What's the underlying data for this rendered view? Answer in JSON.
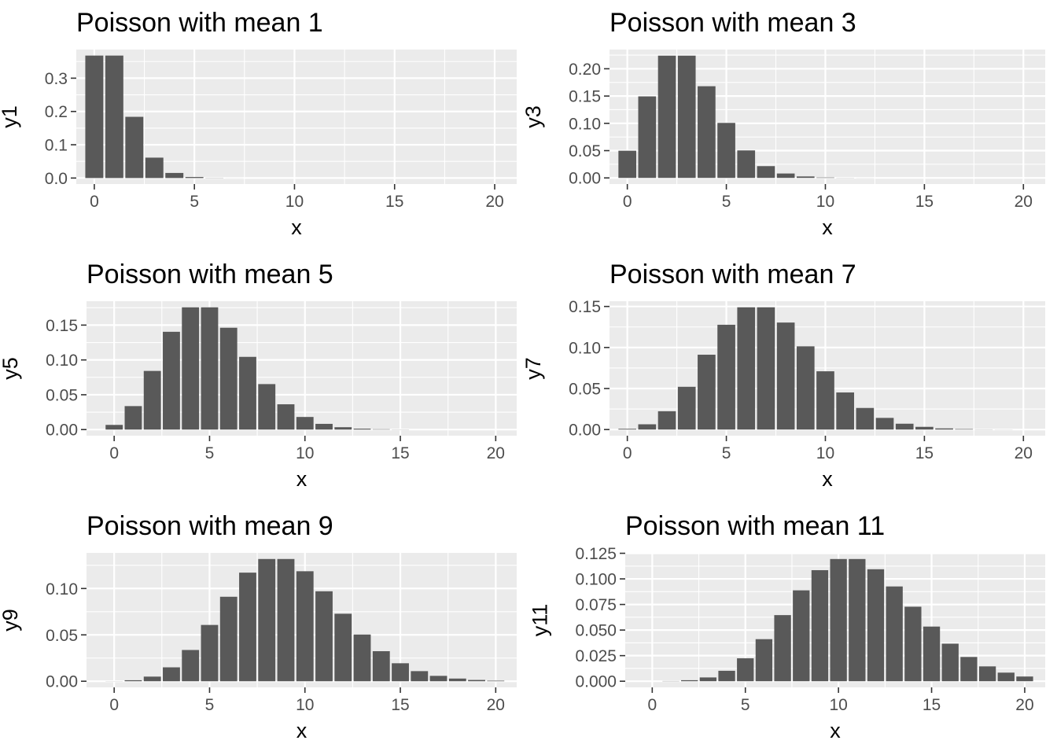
{
  "figure": {
    "background": "#ffffff"
  },
  "style": {
    "panel_bg": "#ebebeb",
    "bar_fill": "#595959",
    "grid": "#ffffff",
    "tick_text": "#4d4d4d"
  },
  "chart_data": [
    {
      "type": "bar",
      "title": "Poisson with mean 1",
      "xlabel": "x",
      "ylabel": "y1",
      "x": [
        0,
        1,
        2,
        3,
        4,
        5,
        6,
        7,
        8,
        9,
        10,
        11,
        12,
        13,
        14,
        15,
        16,
        17,
        18,
        19,
        20
      ],
      "values": [
        0.3679,
        0.3679,
        0.1839,
        0.0613,
        0.0153,
        0.0031,
        0.0005,
        0.0001,
        0,
        0,
        0,
        0,
        0,
        0,
        0,
        0,
        0,
        0,
        0,
        0,
        0
      ],
      "xlim": [
        -0.9,
        21.1
      ],
      "ylim": [
        -0.018,
        0.386
      ],
      "x_ticks": [
        0,
        5,
        10,
        15,
        20
      ],
      "x_tick_labels": [
        "0",
        "5",
        "10",
        "15",
        "20"
      ],
      "y_ticks": [
        0,
        0.1,
        0.2,
        0.3
      ],
      "y_tick_labels": [
        "0.0",
        "0.1",
        "0.2",
        "0.3"
      ],
      "grid": true
    },
    {
      "type": "bar",
      "title": "Poisson with mean 3",
      "xlabel": "x",
      "ylabel": "y3",
      "x": [
        0,
        1,
        2,
        3,
        4,
        5,
        6,
        7,
        8,
        9,
        10,
        11,
        12,
        13,
        14,
        15,
        16,
        17,
        18,
        19,
        20
      ],
      "values": [
        0.0498,
        0.1494,
        0.224,
        0.224,
        0.168,
        0.1008,
        0.0504,
        0.0216,
        0.0081,
        0.0027,
        0.0008,
        0.0002,
        0.0001,
        0,
        0,
        0,
        0,
        0,
        0,
        0,
        0
      ],
      "xlim": [
        -0.9,
        21.1
      ],
      "ylim": [
        -0.0112,
        0.2352
      ],
      "x_ticks": [
        0,
        5,
        10,
        15,
        20
      ],
      "x_tick_labels": [
        "0",
        "5",
        "10",
        "15",
        "20"
      ],
      "y_ticks": [
        0,
        0.05,
        0.1,
        0.15,
        0.2
      ],
      "y_tick_labels": [
        "0.00",
        "0.05",
        "0.10",
        "0.15",
        "0.20"
      ],
      "grid": true
    },
    {
      "type": "bar",
      "title": "Poisson with mean 5",
      "xlabel": "x",
      "ylabel": "y5",
      "x": [
        0,
        1,
        2,
        3,
        4,
        5,
        6,
        7,
        8,
        9,
        10,
        11,
        12,
        13,
        14,
        15,
        16,
        17,
        18,
        19,
        20
      ],
      "values": [
        0.0067,
        0.0337,
        0.0842,
        0.1404,
        0.1755,
        0.1755,
        0.1462,
        0.1044,
        0.0653,
        0.0363,
        0.0181,
        0.0082,
        0.0034,
        0.0013,
        0.0005,
        0.0002,
        0,
        0,
        0,
        0,
        0
      ],
      "xlim": [
        -1.45,
        21.1
      ],
      "ylim": [
        -0.0088,
        0.1843
      ],
      "x_ticks": [
        0,
        5,
        10,
        15,
        20
      ],
      "x_tick_labels": [
        "0",
        "5",
        "10",
        "15",
        "20"
      ],
      "y_ticks": [
        0,
        0.05,
        0.1,
        0.15
      ],
      "y_tick_labels": [
        "0.00",
        "0.05",
        "0.10",
        "0.15"
      ],
      "grid": true
    },
    {
      "type": "bar",
      "title": "Poisson with mean 7",
      "xlabel": "x",
      "ylabel": "y7",
      "x": [
        0,
        1,
        2,
        3,
        4,
        5,
        6,
        7,
        8,
        9,
        10,
        11,
        12,
        13,
        14,
        15,
        16,
        17,
        18,
        19,
        20
      ],
      "values": [
        0.0009,
        0.0064,
        0.0223,
        0.0521,
        0.0912,
        0.1277,
        0.149,
        0.149,
        0.1304,
        0.1014,
        0.071,
        0.0452,
        0.0263,
        0.0142,
        0.0071,
        0.0033,
        0.0014,
        0.0006,
        0.0002,
        0.0001,
        0
      ],
      "xlim": [
        -0.9,
        21.1
      ],
      "ylim": [
        -0.0075,
        0.1564
      ],
      "x_ticks": [
        0,
        5,
        10,
        15,
        20
      ],
      "x_tick_labels": [
        "0",
        "5",
        "10",
        "15",
        "20"
      ],
      "y_ticks": [
        0,
        0.05,
        0.1,
        0.15
      ],
      "y_tick_labels": [
        "0.00",
        "0.05",
        "0.10",
        "0.15"
      ],
      "grid": true
    },
    {
      "type": "bar",
      "title": "Poisson with mean 9",
      "xlabel": "x",
      "ylabel": "y9",
      "x": [
        0,
        1,
        2,
        3,
        4,
        5,
        6,
        7,
        8,
        9,
        10,
        11,
        12,
        13,
        14,
        15,
        16,
        17,
        18,
        19,
        20
      ],
      "values": [
        0.0001,
        0.0011,
        0.005,
        0.015,
        0.0337,
        0.0607,
        0.0911,
        0.1171,
        0.1318,
        0.1318,
        0.1186,
        0.097,
        0.0728,
        0.0504,
        0.0324,
        0.0194,
        0.0109,
        0.0058,
        0.0029,
        0.0014,
        0.0006
      ],
      "xlim": [
        -1.45,
        21.1
      ],
      "ylim": [
        -0.0066,
        0.1384
      ],
      "x_ticks": [
        0,
        5,
        10,
        15,
        20
      ],
      "x_tick_labels": [
        "0",
        "5",
        "10",
        "15",
        "20"
      ],
      "y_ticks": [
        0,
        0.05,
        0.1
      ],
      "y_tick_labels": [
        "0.00",
        "0.05",
        "0.10"
      ],
      "grid": true
    },
    {
      "type": "bar",
      "title": "Poisson with mean 11",
      "xlabel": "x",
      "ylabel": "y11",
      "x": [
        0,
        1,
        2,
        3,
        4,
        5,
        6,
        7,
        8,
        9,
        10,
        11,
        12,
        13,
        14,
        15,
        16,
        17,
        18,
        19,
        20
      ],
      "values": [
        0,
        0.0002,
        0.001,
        0.0037,
        0.0102,
        0.0224,
        0.0411,
        0.0646,
        0.0888,
        0.1085,
        0.1194,
        0.1194,
        0.1094,
        0.0926,
        0.0728,
        0.0534,
        0.0367,
        0.0237,
        0.0145,
        0.0084,
        0.0046
      ],
      "xlim": [
        -1.45,
        21.1
      ],
      "ylim": [
        -0.006,
        0.1254
      ],
      "x_ticks": [
        0,
        5,
        10,
        15,
        20
      ],
      "x_tick_labels": [
        "0",
        "5",
        "10",
        "15",
        "20"
      ],
      "y_ticks": [
        0,
        0.025,
        0.05,
        0.075,
        0.1,
        0.125
      ],
      "y_tick_labels": [
        "0.000",
        "0.025",
        "0.050",
        "0.075",
        "0.100",
        "0.125"
      ],
      "grid": true
    }
  ]
}
